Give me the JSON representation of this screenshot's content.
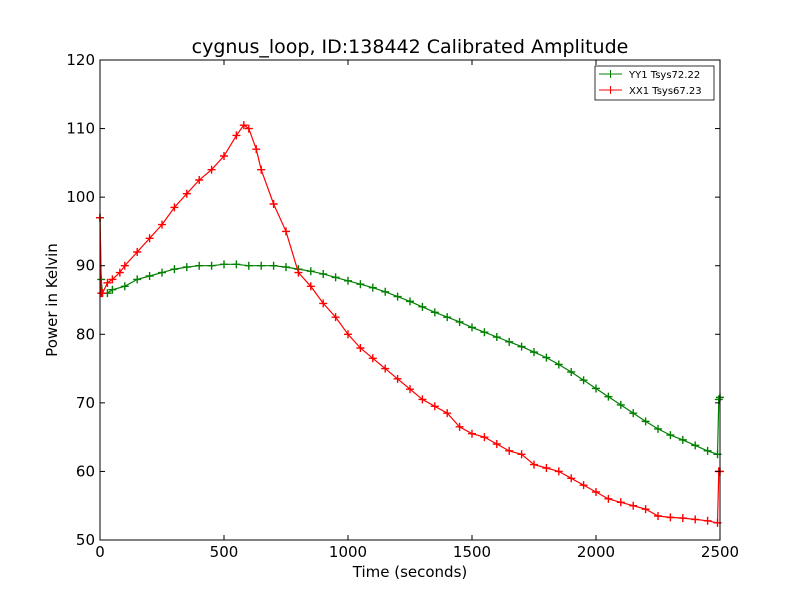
{
  "chart_data": {
    "type": "line",
    "title": "cygnus_loop, ID:138442 Calibrated Amplitude",
    "xlabel": "Time (seconds)",
    "ylabel": "Power in Kelvin",
    "xlim": [
      0,
      2500
    ],
    "ylim": [
      50,
      120
    ],
    "xticks": [
      0,
      500,
      1000,
      1500,
      2000,
      2500
    ],
    "yticks": [
      50,
      60,
      70,
      80,
      90,
      100,
      110,
      120
    ],
    "grid": false,
    "legend_position": "top-right",
    "series": [
      {
        "name": "YY1 Tsys72.22",
        "color": "#008000",
        "marker": "+",
        "x": [
          0,
          5,
          10,
          30,
          50,
          100,
          150,
          200,
          250,
          300,
          350,
          400,
          450,
          500,
          550,
          600,
          650,
          700,
          750,
          800,
          850,
          900,
          950,
          1000,
          1050,
          1100,
          1150,
          1200,
          1250,
          1300,
          1350,
          1400,
          1450,
          1500,
          1550,
          1600,
          1650,
          1700,
          1750,
          1800,
          1850,
          1900,
          1950,
          2000,
          2050,
          2100,
          2150,
          2200,
          2250,
          2300,
          2350,
          2400,
          2450,
          2490,
          2495,
          2500
        ],
        "y": [
          97,
          88,
          86,
          86,
          86.5,
          87,
          88,
          88.5,
          89,
          89.5,
          89.8,
          90,
          90,
          90.2,
          90.2,
          90,
          90,
          90,
          89.8,
          89.5,
          89.2,
          88.8,
          88.3,
          87.8,
          87.3,
          86.8,
          86.2,
          85.5,
          84.8,
          84,
          83.2,
          82.5,
          81.8,
          81,
          80.3,
          79.6,
          78.9,
          78.2,
          77.4,
          76.6,
          75.6,
          74.5,
          73.3,
          72.1,
          70.9,
          69.7,
          68.5,
          67.3,
          66.2,
          65.3,
          64.6,
          63.8,
          63,
          62.5,
          70.5,
          70.8
        ]
      },
      {
        "name": "XX1 Tsys67.23",
        "color": "#ff0000",
        "marker": "+",
        "x": [
          0,
          5,
          10,
          30,
          50,
          80,
          100,
          150,
          200,
          250,
          300,
          350,
          400,
          450,
          500,
          550,
          580,
          600,
          630,
          650,
          700,
          750,
          800,
          850,
          900,
          950,
          1000,
          1050,
          1100,
          1150,
          1200,
          1250,
          1300,
          1350,
          1400,
          1450,
          1500,
          1550,
          1600,
          1650,
          1700,
          1750,
          1800,
          1850,
          1900,
          1950,
          2000,
          2050,
          2100,
          2150,
          2200,
          2250,
          2300,
          2350,
          2400,
          2450,
          2490,
          2495,
          2500
        ],
        "y": [
          97,
          86,
          86,
          87.5,
          88,
          89,
          90,
          92,
          94,
          96,
          98.5,
          100.5,
          102.5,
          104,
          106,
          109,
          110.5,
          110,
          107,
          104,
          99,
          95,
          89,
          87,
          84.5,
          82.5,
          80,
          78,
          76.5,
          75,
          73.5,
          72,
          70.5,
          69.5,
          68.5,
          66.5,
          65.5,
          65,
          64,
          63,
          62.5,
          61,
          60.5,
          60,
          59,
          58,
          57,
          56,
          55.5,
          55,
          54.5,
          53.5,
          53.3,
          53.2,
          53,
          52.8,
          52.5,
          60,
          60
        ]
      }
    ]
  }
}
